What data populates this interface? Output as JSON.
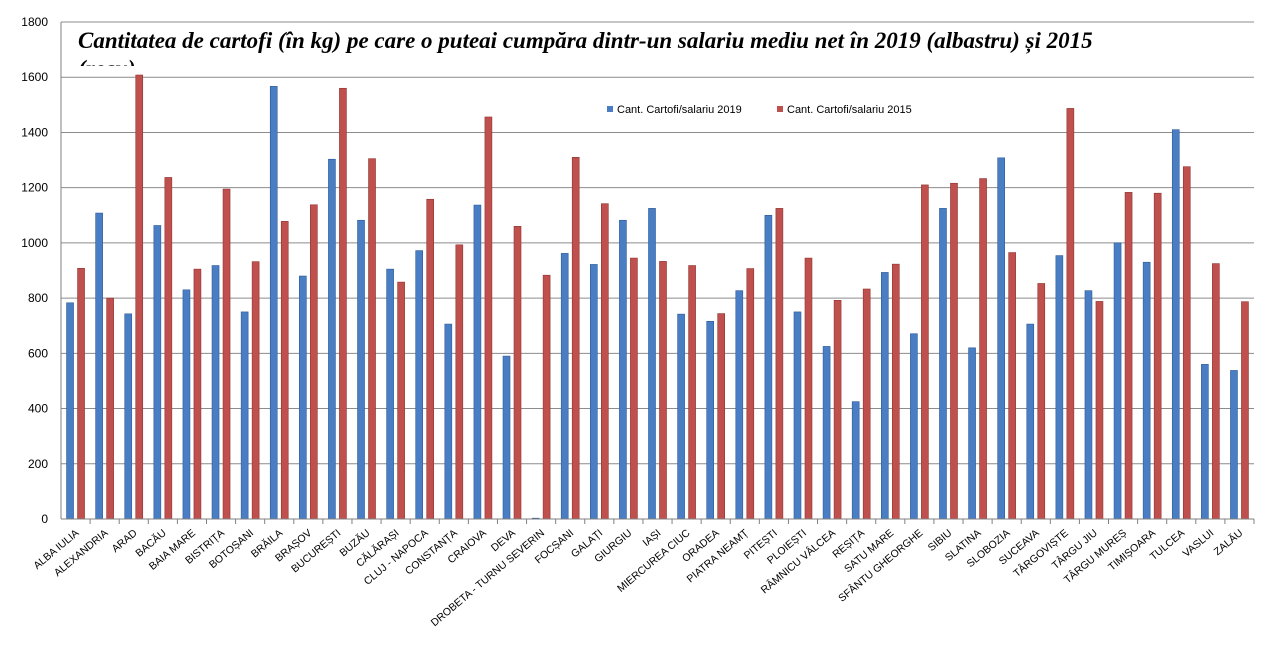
{
  "chart_data": {
    "type": "bar",
    "title_line1": "Cantitatea de cartofi (în kg) pe care o puteai cumpăra dintr-un salariu mediu net în 2019 (albastru) și 2015",
    "title_line2": "(roșu)",
    "ylim": [
      0,
      1800
    ],
    "yticks": [
      "0",
      "200",
      "400",
      "600",
      "800",
      "1000",
      "1200",
      "1400",
      "1600",
      "1800"
    ],
    "grid": true,
    "legend_position": "top-center",
    "colors": {
      "s2019": "#4a7ec4",
      "s2015": "#c0504d"
    },
    "categories": [
      "ALBA IULIA",
      "ALEXANDRIA",
      "ARAD",
      "BACĂU",
      "BAIA MARE",
      "BISTRIȚA",
      "BOTOȘANI",
      "BRĂILA",
      "BRAȘOV",
      "BUCUREȘTI",
      "BUZĂU",
      "CĂLĂRAȘI",
      "CLUJ - NAPOCA",
      "CONSTANȚA",
      "CRAIOVA",
      "DEVA",
      "DROBETA - TURNU SEVERIN",
      "FOCȘANI",
      "GALAȚI",
      "GIURGIU",
      "IAȘI",
      "MIERCUREA CIUC",
      "ORADEA",
      "PIATRA NEAMȚ",
      "PITEȘTI",
      "PLOIEȘTI",
      "RÂMNICU VÂLCEA",
      "REȘIȚA",
      "SATU MARE",
      "SFÂNTU GHEORGHE",
      "SIBIU",
      "SLATINA",
      "SLOBOZIA",
      "SUCEAVA",
      "TÂRGOVIȘTE",
      "TÂRGU JIU",
      "TÂRGU MUREȘ",
      "TIMIȘOARA",
      "TULCEA",
      "VASLUI",
      "ZALĂU"
    ],
    "series": [
      {
        "name": "Cant. Cartofi/salariu  2019",
        "values": [
          783,
          1108,
          743,
          1063,
          830,
          918,
          750,
          1567,
          880,
          1303,
          1082,
          905,
          972,
          706,
          1137,
          590,
          3,
          962,
          922,
          1082,
          1125,
          742,
          716,
          827,
          1100,
          750,
          625,
          425,
          893,
          671,
          1125,
          620,
          1308,
          706,
          954,
          827,
          1000,
          930,
          1410,
          560,
          538
        ]
      },
      {
        "name": "Cant. Cartofi/salariu  2015",
        "values": [
          908,
          800,
          1608,
          1237,
          905,
          1195,
          932,
          1078,
          1138,
          1560,
          1305,
          858,
          1158,
          993,
          1456,
          1060,
          883,
          1310,
          1142,
          945,
          933,
          918,
          744,
          907,
          1125,
          945,
          792,
          833,
          923,
          1210,
          1216,
          1233,
          965,
          853,
          1487,
          788,
          1183,
          1180,
          1276,
          925,
          787
        ]
      }
    ]
  }
}
